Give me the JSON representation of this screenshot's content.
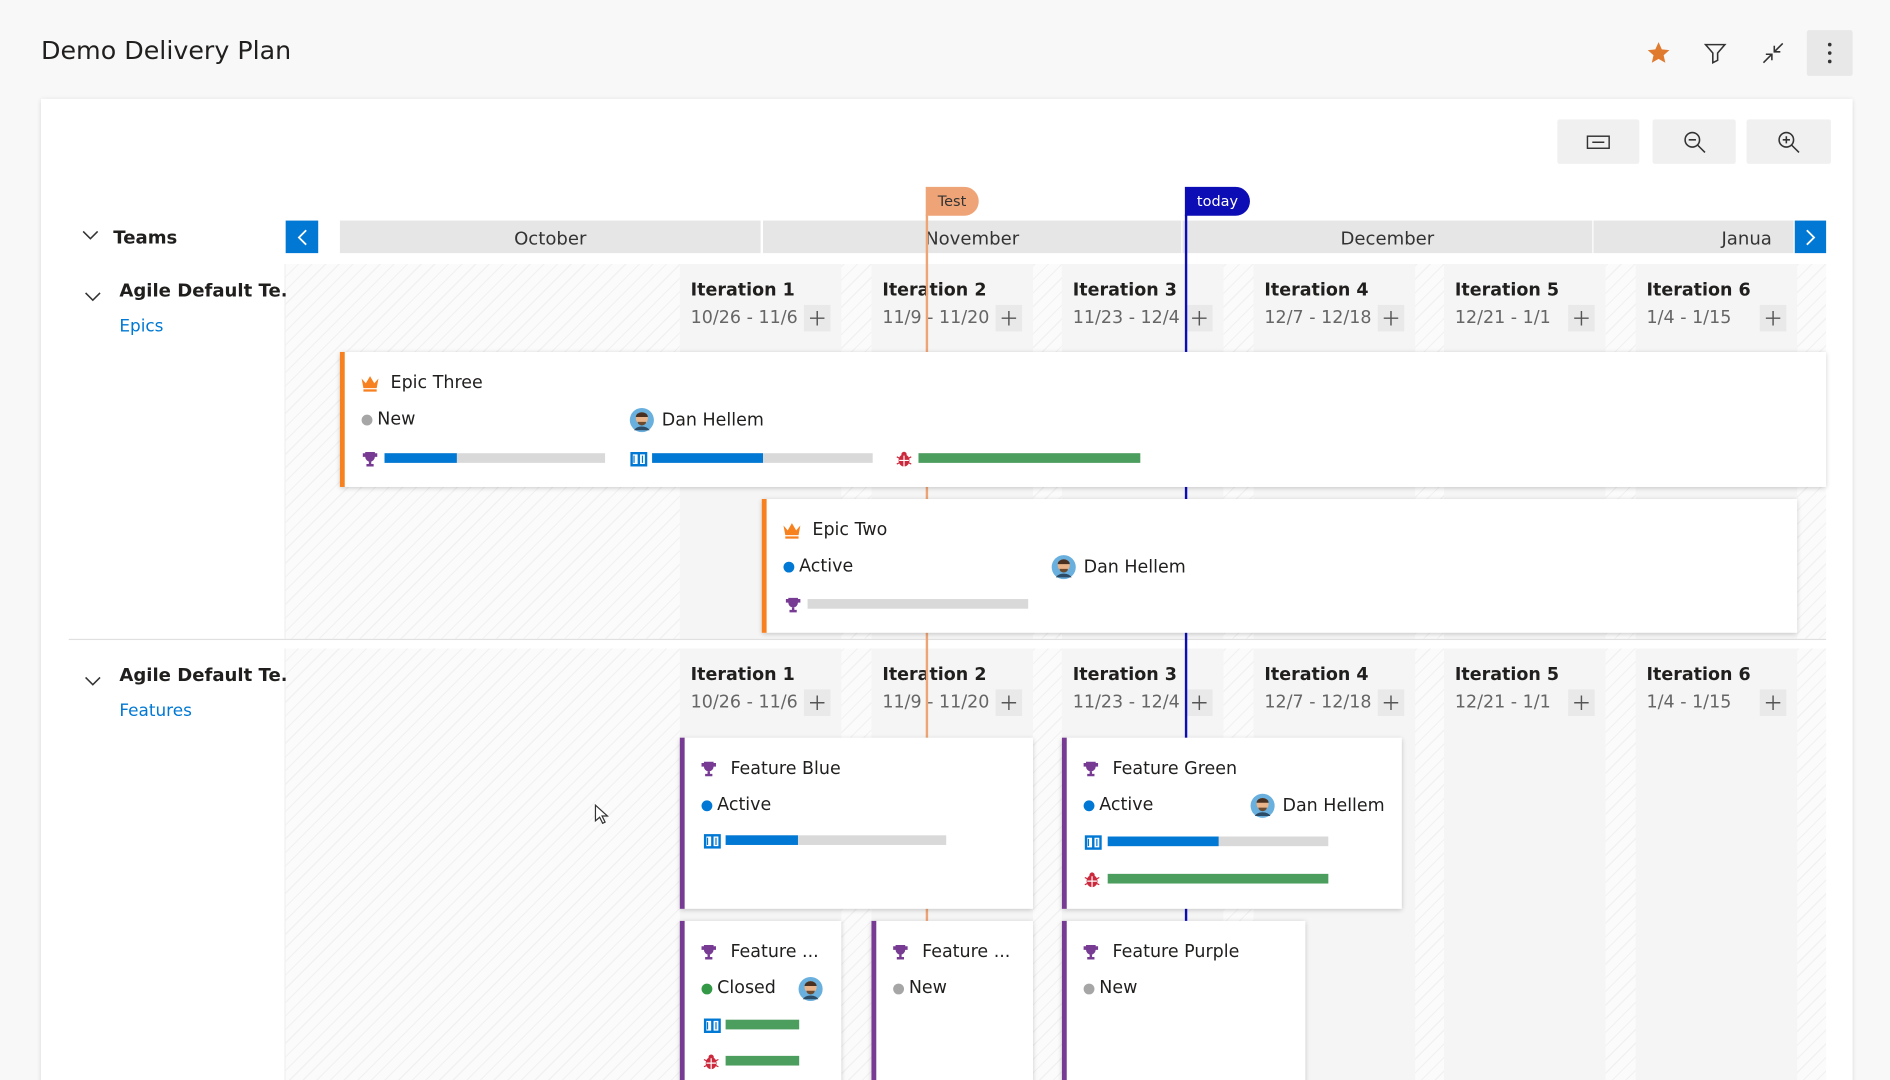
{
  "header": {
    "title": "Demo Delivery Plan"
  },
  "timeline": {
    "teams_label": "Teams",
    "months": [
      "October",
      "November",
      "December",
      "Janua"
    ],
    "markers": [
      {
        "label": "Test",
        "color": "#eea477"
      },
      {
        "label": "today",
        "color": "#0d0db5"
      }
    ]
  },
  "teams": [
    {
      "name": "Agile Default Te...",
      "backlog": "Epics",
      "color": "#f7811f",
      "card_icon": "crown",
      "iterations": [
        {
          "name": "Iteration 1",
          "dates": "10/26 - 11/6"
        },
        {
          "name": "Iteration 2",
          "dates": "11/9 - 11/20"
        },
        {
          "name": "Iteration 3",
          "dates": "11/23 - 12/4"
        },
        {
          "name": "Iteration 4",
          "dates": "12/7 - 12/18"
        },
        {
          "name": "Iteration 5",
          "dates": "12/21 - 1/1"
        },
        {
          "name": "Iteration 6",
          "dates": "1/4 - 1/15"
        }
      ],
      "cards": [
        {
          "title": "Epic Three",
          "state": "New",
          "state_color": "#a6a6a6",
          "assignee": "Dan Hellem",
          "progress": [
            {
              "kind": "trophy",
              "color": "#0078d4",
              "value": 33
            },
            {
              "kind": "book",
              "color": "#0078d4",
              "value": 50
            },
            {
              "kind": "bug",
              "color": "#4c9e5f",
              "value": 100
            }
          ]
        },
        {
          "title": "Epic Two",
          "state": "Active",
          "state_color": "#0078d4",
          "assignee": "Dan Hellem",
          "progress": [
            {
              "kind": "trophy",
              "color": "#0078d4",
              "value": 0
            }
          ]
        }
      ]
    },
    {
      "name": "Agile Default Te...",
      "backlog": "Features",
      "color": "#773b93",
      "card_icon": "trophy",
      "iterations": [
        {
          "name": "Iteration 1",
          "dates": "10/26 - 11/6"
        },
        {
          "name": "Iteration 2",
          "dates": "11/9 - 11/20"
        },
        {
          "name": "Iteration 3",
          "dates": "11/23 - 12/4"
        },
        {
          "name": "Iteration 4",
          "dates": "12/7 - 12/18"
        },
        {
          "name": "Iteration 5",
          "dates": "12/21 - 1/1"
        },
        {
          "name": "Iteration 6",
          "dates": "1/4 - 1/15"
        }
      ],
      "cards": [
        {
          "title": "Feature Blue",
          "state": "Active",
          "state_color": "#0078d4",
          "progress": [
            {
              "kind": "book",
              "color": "#0078d4",
              "value": 33
            }
          ]
        },
        {
          "title": "Feature Green",
          "state": "Active",
          "state_color": "#0078d4",
          "assignee": "Dan Hellem",
          "progress": [
            {
              "kind": "book",
              "color": "#0078d4",
              "value": 50
            },
            {
              "kind": "bug",
              "color": "#4c9e5f",
              "value": 100
            }
          ]
        },
        {
          "title": "Feature ...",
          "state": "Closed",
          "state_color": "#339947",
          "progress": [
            {
              "kind": "book",
              "color": "#4c9e5f",
              "value": 100
            },
            {
              "kind": "bug",
              "color": "#4c9e5f",
              "value": 100
            }
          ]
        },
        {
          "title": "Feature ...",
          "state": "New",
          "state_color": "#a6a6a6",
          "progress": []
        },
        {
          "title": "Feature Purple",
          "state": "New",
          "state_color": "#a6a6a6",
          "progress": []
        }
      ]
    }
  ]
}
